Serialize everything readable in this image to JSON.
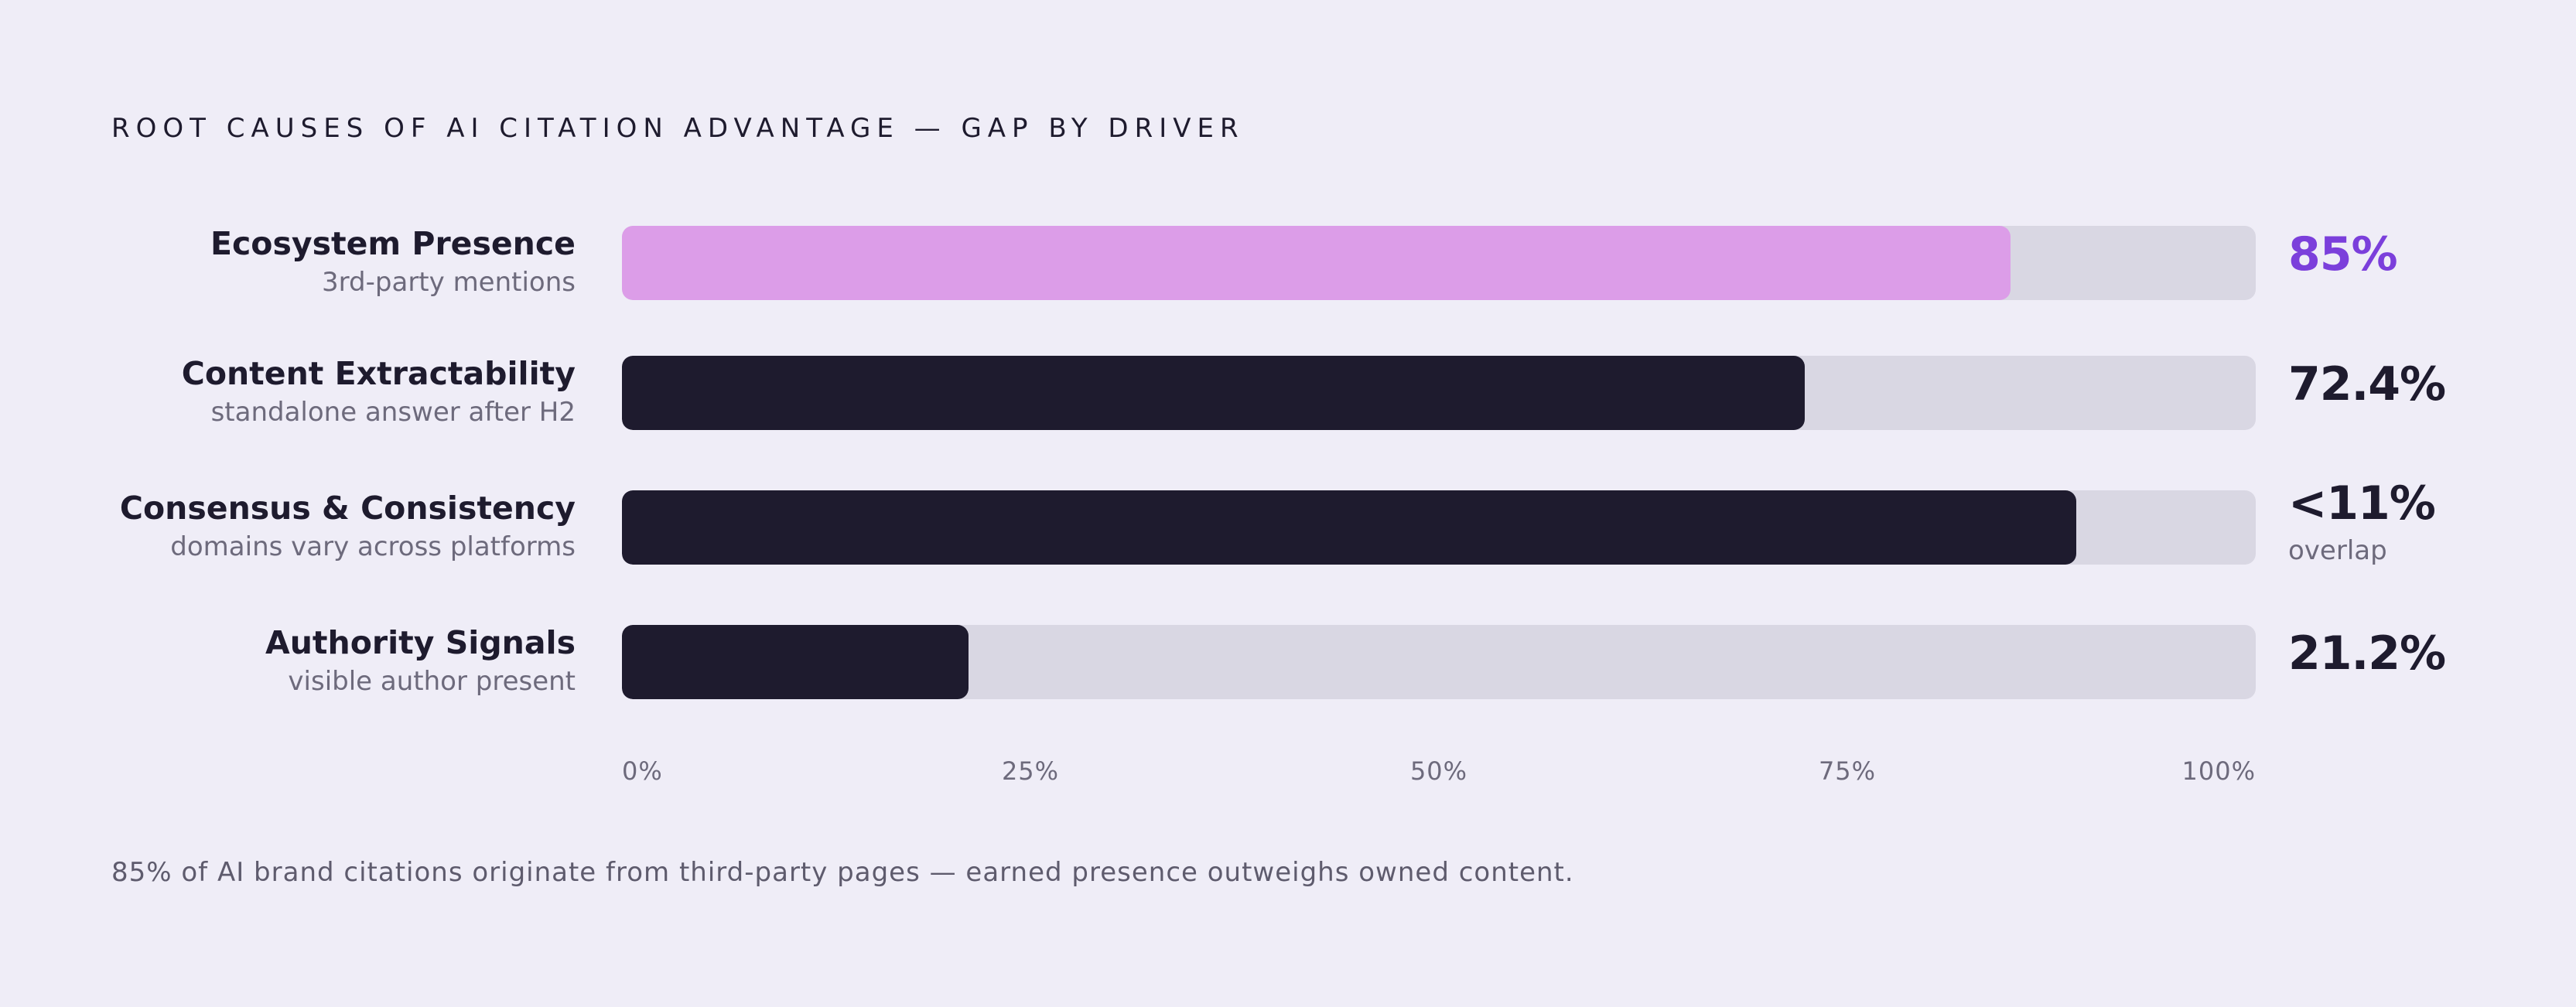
{
  "chart_data": {
    "type": "bar",
    "orientation": "horizontal",
    "title": "ROOT CAUSES OF AI CITATION ADVANTAGE — GAP BY DRIVER",
    "categories": [
      "Ecosystem Presence",
      "Content Extractability",
      "Consensus & Consistency",
      "Authority Signals"
    ],
    "subtitles": [
      "3rd-party mentions",
      "standalone answer after H2",
      "domains vary across platforms",
      "visible author present"
    ],
    "values": [
      85,
      72.4,
      89,
      21.2
    ],
    "value_labels": [
      "85%",
      "72.4%",
      "<11%",
      "21.2%"
    ],
    "value_notes": [
      "",
      "",
      "overlap",
      ""
    ],
    "highlight_index": 0,
    "xlim": [
      0,
      100
    ],
    "xticks": [
      "0%",
      "25%",
      "50%",
      "75%",
      "100%"
    ],
    "grid": false,
    "legend": "none",
    "colors": {
      "highlight_bar": "#dc9de8",
      "highlight_value": "#7b3fdb",
      "bar": "#1e1b2e",
      "value": "#1e1b2e",
      "track": "#d9d7e3"
    }
  },
  "footnote": "85% of AI brand citations originate from third-party pages — earned presence outweighs owned content."
}
